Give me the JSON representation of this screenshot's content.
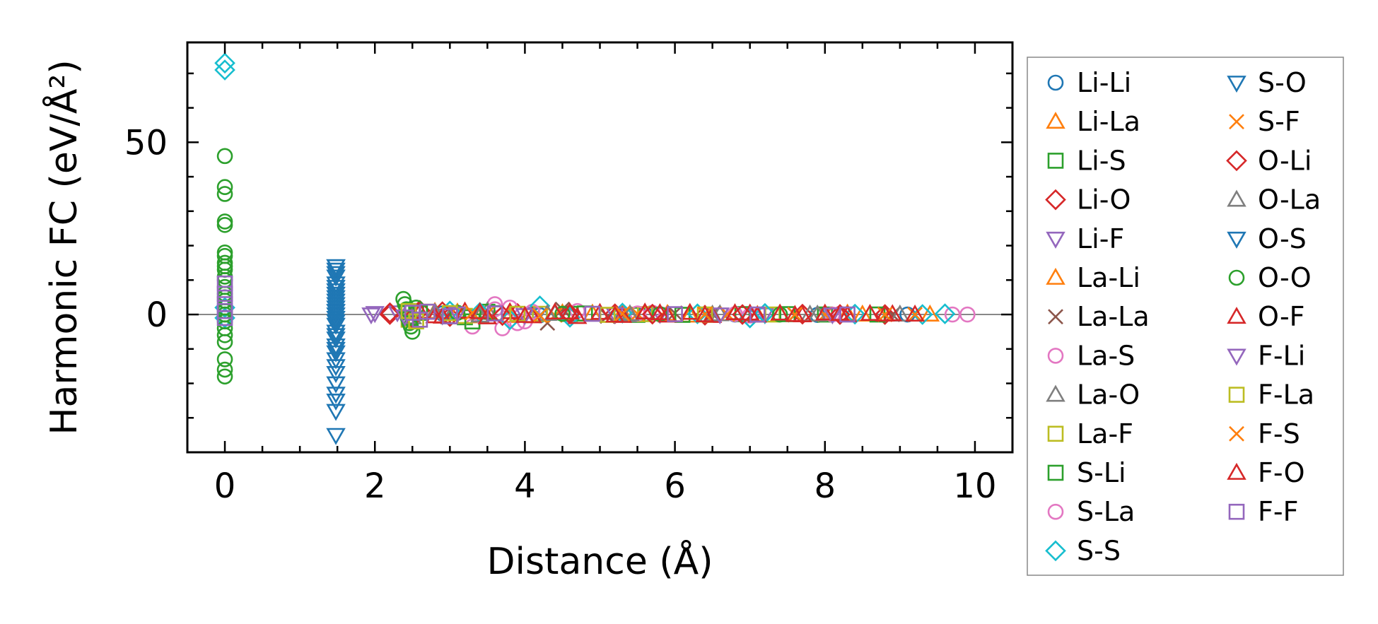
{
  "chart_data": {
    "type": "scatter",
    "title": "",
    "xlabel": "Distance (Å)",
    "ylabel": "Harmonic FC (eV/Å²)",
    "xlim": [
      -0.5,
      10.5
    ],
    "ylim": [
      -40,
      79
    ],
    "x_ticks": [
      0,
      2,
      4,
      6,
      8,
      10
    ],
    "y_ticks": [
      0,
      50
    ],
    "grid": false,
    "legend_position": "right-outside",
    "zero_line": true,
    "series": [
      {
        "name": "Li-Li",
        "marker": "circle",
        "color": "#1f77b4",
        "x": [
          0,
          2.9,
          4.2,
          5.6,
          6.8,
          7.9,
          9.1
        ],
        "y": [
          0,
          0.3,
          -0.2,
          0.1,
          0,
          -0.1,
          0
        ]
      },
      {
        "name": "Li-La",
        "marker": "triangle-up",
        "color": "#ff7f0e",
        "x": [
          2.8,
          3.4,
          4.5,
          5.3,
          6.2,
          7.4,
          8.3,
          9.4
        ],
        "y": [
          0.8,
          -0.5,
          0.4,
          0.6,
          -0.3,
          0.2,
          0.3,
          0
        ]
      },
      {
        "name": "Li-S",
        "marker": "square",
        "color": "#2ca02c",
        "x": [
          2.5,
          3.2,
          3.6,
          4.6,
          5.5,
          6.9,
          8.0
        ],
        "y": [
          1.0,
          -0.8,
          0.4,
          0.2,
          -0.1,
          0.1,
          0
        ]
      },
      {
        "name": "Li-O",
        "marker": "diamond",
        "color": "#d62728",
        "x": [
          2.2,
          2.6,
          3.0,
          3.9,
          5.2,
          6.4,
          7.7,
          8.8
        ],
        "y": [
          0,
          1.2,
          -0.6,
          0.3,
          0.2,
          -0.2,
          0.1,
          0
        ]
      },
      {
        "name": "Li-F",
        "marker": "triangle-down",
        "color": "#9467bd",
        "x": [
          1.95,
          2.3,
          2.9,
          4.1,
          5.8,
          7.2
        ],
        "y": [
          0,
          0.6,
          -0.3,
          0.2,
          0.1,
          0
        ]
      },
      {
        "name": "La-Li",
        "marker": "triangle-up",
        "color": "#ff7f0e",
        "x": [
          3.1,
          3.8,
          4.9,
          5.9,
          7.1,
          8.5
        ],
        "y": [
          0.6,
          -0.4,
          0.3,
          0.2,
          -0.1,
          0
        ]
      },
      {
        "name": "La-La",
        "marker": "x",
        "color": "#8c564b",
        "x": [
          4.3,
          4.5,
          5.1,
          6.0,
          6.5,
          7.6,
          8.9
        ],
        "y": [
          -2.5,
          1.5,
          -0.5,
          0.4,
          0.2,
          -0.1,
          0
        ]
      },
      {
        "name": "La-S",
        "marker": "circle",
        "color": "#e377c2",
        "x": [
          3.3,
          3.6,
          3.7,
          3.8,
          4.0,
          4.7,
          5.7,
          7.0,
          8.2,
          9.9
        ],
        "y": [
          -3.5,
          3.0,
          -4.0,
          2.0,
          -2.0,
          1.0,
          0.5,
          -0.3,
          0.2,
          0
        ]
      },
      {
        "name": "La-O",
        "marker": "triangle-up",
        "color": "#7f7f7f",
        "x": [
          2.5,
          3.0,
          3.5,
          4.4,
          5.4,
          6.6,
          7.8,
          9.0
        ],
        "y": [
          0.5,
          -0.8,
          1.0,
          0.3,
          -0.2,
          0.1,
          0,
          0
        ]
      },
      {
        "name": "La-F",
        "marker": "square",
        "color": "#bcbd22",
        "x": [
          2.45,
          2.7,
          3.2,
          4.2,
          5.6,
          7.3
        ],
        "y": [
          -1.5,
          0.8,
          -0.4,
          0.2,
          0.1,
          0
        ]
      },
      {
        "name": "S-Li",
        "marker": "square",
        "color": "#2ca02c",
        "x": [
          2.6,
          3.3,
          3.5,
          4.8,
          6.1,
          7.5,
          8.7
        ],
        "y": [
          0.5,
          -2.0,
          0.8,
          0.3,
          -0.1,
          0.1,
          0
        ]
      },
      {
        "name": "S-La",
        "marker": "circle",
        "color": "#e377c2",
        "x": [
          3.6,
          3.9,
          4.1,
          4.6,
          5.5,
          6.8,
          8.1,
          9.7
        ],
        "y": [
          1.5,
          -2.5,
          0.8,
          -0.5,
          0.3,
          0.1,
          0,
          0
        ]
      },
      {
        "name": "S-S",
        "marker": "diamond",
        "color": "#17becf",
        "x": [
          0,
          0,
          0,
          0,
          3.0,
          3.4,
          3.8,
          4.2,
          4.6,
          5.3,
          6.3,
          7.0,
          7.2,
          8.4,
          9.3,
          9.6
        ],
        "y": [
          73,
          71,
          2,
          -1,
          1.0,
          0.6,
          -1.5,
          2.5,
          -0.8,
          0.4,
          0.2,
          -1.0,
          0.3,
          0.1,
          0,
          0.2
        ]
      },
      {
        "name": "S-O",
        "marker": "triangle-down",
        "color": "#1f77b4",
        "x": [
          1.48,
          1.48,
          1.48,
          1.48,
          1.48,
          1.48,
          1.48,
          1.48,
          1.48,
          1.48,
          1.48,
          1.48,
          1.48,
          1.48,
          1.48,
          1.48,
          1.48,
          1.48,
          1.48,
          1.48,
          1.48,
          1.48,
          1.48,
          1.48
        ],
        "y": [
          14,
          13,
          11,
          9,
          7,
          6,
          4,
          3,
          2,
          1,
          0,
          -1,
          -2,
          -3,
          -5,
          -7,
          -9,
          -11,
          -13,
          -17,
          -20,
          -23,
          -28,
          -35
        ]
      },
      {
        "name": "S-F",
        "marker": "x",
        "color": "#ff7f0e",
        "x": [
          3.5,
          4.4,
          5.5,
          6.7,
          8.0,
          9.2
        ],
        "y": [
          0.3,
          -0.2,
          0.2,
          0.1,
          0,
          0
        ]
      },
      {
        "name": "O-Li",
        "marker": "diamond",
        "color": "#d62728",
        "x": [
          2.2,
          2.5,
          2.9,
          3.7,
          4.6,
          5.7,
          6.9,
          8.2
        ],
        "y": [
          0.5,
          -1.0,
          0.8,
          -0.3,
          0.2,
          0.1,
          0,
          0
        ]
      },
      {
        "name": "O-La",
        "marker": "triangle-up",
        "color": "#7f7f7f",
        "x": [
          2.5,
          2.8,
          3.4,
          4.3,
          5.4,
          6.5,
          7.9
        ],
        "y": [
          -0.8,
          0.6,
          -0.3,
          0.2,
          0.1,
          0,
          0
        ]
      },
      {
        "name": "O-S",
        "marker": "triangle-down",
        "color": "#1f77b4",
        "x": [
          1.48,
          1.48,
          1.48,
          1.48,
          1.48,
          1.48,
          1.48,
          1.48,
          1.48,
          1.48
        ],
        "y": [
          14,
          12,
          8,
          5,
          1,
          -2,
          -6,
          -10,
          -15,
          -25
        ]
      },
      {
        "name": "O-O",
        "marker": "circle",
        "color": "#2ca02c",
        "x": [
          0,
          0,
          0,
          0,
          0,
          0,
          0,
          0,
          0,
          0,
          0,
          0,
          0,
          0,
          0,
          0,
          0,
          0,
          0,
          0,
          0,
          0,
          0,
          0,
          0,
          0,
          2.38,
          2.4,
          2.42,
          2.44,
          2.46,
          2.48,
          2.5,
          2.55,
          3.1,
          4.5,
          5.8,
          7.4
        ],
        "y": [
          46,
          37,
          35,
          27,
          26,
          18,
          17,
          15,
          14,
          13,
          11,
          10,
          8,
          6,
          5,
          4,
          2,
          1,
          0,
          -2,
          -4,
          -6,
          -8,
          -13,
          -16,
          -18,
          4.5,
          3,
          1.5,
          -1,
          -2.5,
          -3.5,
          -5,
          2,
          0.5,
          0.2,
          0.1,
          0
        ]
      },
      {
        "name": "O-F",
        "marker": "triangle-up",
        "color": "#d62728",
        "x": [
          2.6,
          2.9,
          3.2,
          3.5,
          3.8,
          4.1,
          4.4,
          4.7,
          5.0,
          5.3,
          5.6,
          5.9,
          6.2,
          6.5,
          6.8,
          7.1,
          7.4,
          7.7,
          8.0,
          8.3,
          8.6,
          8.9,
          9.2
        ],
        "y": [
          0.8,
          -0.6,
          0.9,
          -0.8,
          0.7,
          -0.5,
          0.6,
          -0.7,
          0.5,
          -0.4,
          0.6,
          -0.3,
          0.5,
          -0.4,
          0.4,
          -0.3,
          0.3,
          -0.2,
          0.3,
          -0.2,
          0.2,
          0.1,
          0
        ]
      },
      {
        "name": "F-Li",
        "marker": "triangle-down",
        "color": "#9467bd",
        "x": [
          2.0,
          2.4,
          3.1,
          4.0,
          5.2,
          6.6,
          8.1
        ],
        "y": [
          0.4,
          -0.6,
          0.3,
          -0.2,
          0.1,
          0,
          0
        ]
      },
      {
        "name": "F-La",
        "marker": "square",
        "color": "#bcbd22",
        "x": [
          2.45,
          2.55,
          3.0,
          3.9,
          5.1,
          6.4
        ],
        "y": [
          1.0,
          -2.0,
          0.4,
          0.2,
          -0.1,
          0
        ]
      },
      {
        "name": "F-S",
        "marker": "x",
        "color": "#ff7f0e",
        "x": [
          3.3,
          4.2,
          5.3,
          6.4,
          7.6,
          8.8
        ],
        "y": [
          0.5,
          -0.3,
          0.2,
          0.1,
          0,
          0
        ]
      },
      {
        "name": "F-O",
        "marker": "triangle-up",
        "color": "#d62728",
        "x": [
          2.8,
          3.4,
          4.0,
          4.6,
          5.2,
          5.8,
          6.4,
          7.0,
          7.6,
          8.2,
          8.8
        ],
        "y": [
          -0.5,
          0.7,
          -0.4,
          0.6,
          -0.3,
          0.4,
          -0.2,
          0.3,
          -0.1,
          0.2,
          0
        ]
      },
      {
        "name": "F-F",
        "marker": "square",
        "color": "#9467bd",
        "x": [
          0,
          0,
          0,
          0,
          0,
          2.5,
          2.6,
          2.7,
          3.0,
          3.6,
          4.9,
          6.0,
          7.1,
          8.3
        ],
        "y": [
          9,
          6,
          3,
          1,
          -1,
          0.5,
          -1.5,
          0.8,
          -0.5,
          0.3,
          0.2,
          0.1,
          0,
          0
        ]
      }
    ]
  }
}
